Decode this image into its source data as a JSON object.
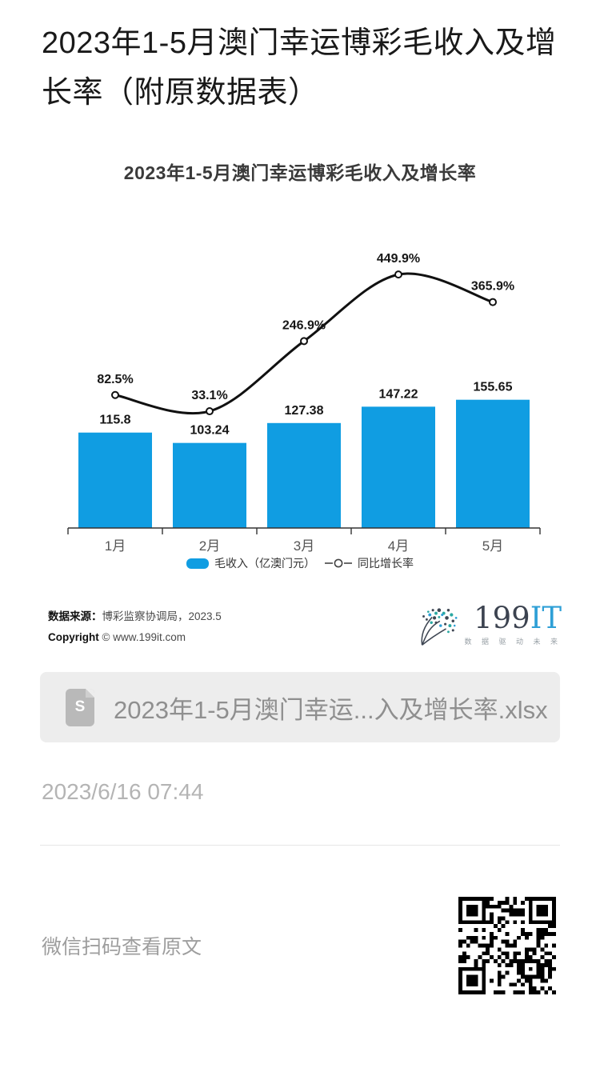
{
  "page": {
    "title": "2023年1-5月澳门幸运博彩毛收入及增长率（附原数据表）",
    "date": "2023/6/16 07:44"
  },
  "chart_data": {
    "type": "bar",
    "title": "2023年1-5月澳门幸运博彩毛收入及增长率",
    "categories": [
      "1月",
      "2月",
      "3月",
      "4月",
      "5月"
    ],
    "series": [
      {
        "name": "毛收入（亿澳门元）",
        "type": "bar",
        "values": [
          115.8,
          103.24,
          127.38,
          147.22,
          155.65
        ],
        "color": "#109de2"
      },
      {
        "name": "同比增长率",
        "type": "line",
        "values": [
          82.5,
          33.1,
          246.9,
          449.9,
          365.9
        ],
        "unit": "%",
        "color": "#111111"
      }
    ],
    "value_labels": {
      "bar": [
        "115.8",
        "103.24",
        "127.38",
        "147.22",
        "155.65"
      ],
      "line": [
        "82.5%",
        "33.1%",
        "246.9%",
        "449.9%",
        "365.9%"
      ]
    },
    "xlabel": "",
    "ylabel": "",
    "bar_ylim": [
      0,
      170
    ],
    "line_ylim": [
      0,
      500
    ],
    "grid": false,
    "legend_position": "bottom"
  },
  "source": {
    "label": "数据来源：",
    "value": "博彩监察协调局，2023.5",
    "copyright_label": "Copyright",
    "copyright_value": "© www.199it.com"
  },
  "logo": {
    "name_part1": "199",
    "name_part2": "IT",
    "tagline": "数 据 驱 动 未 来"
  },
  "attachment": {
    "filename": "2023年1-5月澳门幸运...入及增长率.xlsx",
    "icon_letter": "S"
  },
  "footer": {
    "qr_caption": "微信扫码查看原文"
  }
}
